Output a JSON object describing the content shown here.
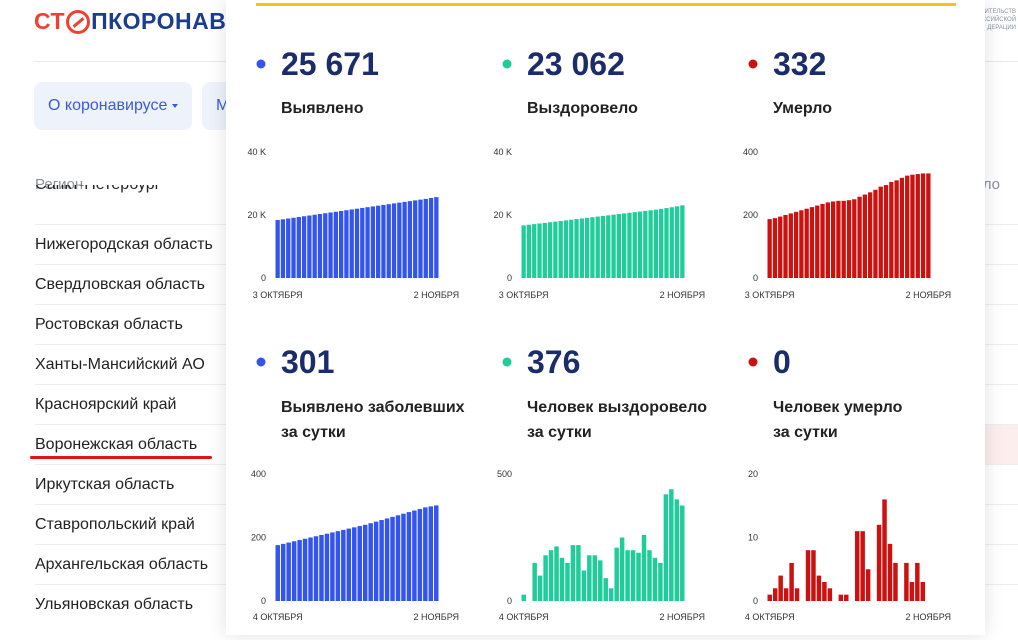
{
  "header": {
    "logo_left": "СТ",
    "logo_right": "ПКОРОНАВИ",
    "gov_lines": [
      "ИТЕЛЬСТВ",
      "ССИЙСКОЙ",
      "ДЕРАЦИИ"
    ]
  },
  "nav": [
    "О коронавирусе",
    "М"
  ],
  "table": {
    "header": "Регион",
    "header_right": "ло",
    "rows": [
      "Санкт-Петербург",
      "Нижегородская область",
      "Свердловская область",
      "Ростовская область",
      "Ханты-Мансийский АО",
      "Красноярский край",
      "Воронежская область",
      "Иркутская область",
      "Ставропольский край",
      "Архангельская область",
      "Ульяновская область"
    ]
  },
  "chart_data": [
    {
      "type": "bar",
      "headline": "25 671",
      "caption": [
        "Выявлено"
      ],
      "color": "#3355ee",
      "categories": [
        "3 ОКТЯБРЯ",
        null,
        null,
        null,
        null,
        null,
        null,
        null,
        null,
        null,
        null,
        null,
        null,
        null,
        null,
        null,
        null,
        null,
        null,
        null,
        null,
        null,
        null,
        null,
        null,
        null,
        null,
        null,
        null,
        null,
        "2 НОЯБРЯ"
      ],
      "values": [
        18400,
        18640,
        18880,
        19120,
        19360,
        19600,
        19840,
        20080,
        20320,
        20560,
        20800,
        21040,
        21280,
        21520,
        21760,
        22000,
        22240,
        22480,
        22720,
        22960,
        23200,
        23440,
        23680,
        23920,
        24160,
        24400,
        24640,
        24880,
        25120,
        25400,
        25671
      ],
      "ylim": [
        0,
        40000
      ],
      "yticks": [
        0,
        {
          "value": 20000,
          "label": "20 K"
        },
        {
          "value": 40000,
          "label": "40 K"
        }
      ]
    },
    {
      "type": "bar",
      "headline": "23 062",
      "caption": [
        "Выздоровело"
      ],
      "color": "#1fcc9a",
      "categories": [
        "3 ОКТЯБРЯ",
        null,
        null,
        null,
        null,
        null,
        null,
        null,
        null,
        null,
        null,
        null,
        null,
        null,
        null,
        null,
        null,
        null,
        null,
        null,
        null,
        null,
        null,
        null,
        null,
        null,
        null,
        null,
        null,
        null,
        "2 НОЯБРЯ"
      ],
      "values": [
        16700,
        16900,
        17100,
        17300,
        17500,
        17700,
        17900,
        18100,
        18300,
        18500,
        18700,
        18900,
        19100,
        19300,
        19500,
        19700,
        19900,
        20100,
        20300,
        20500,
        20700,
        20900,
        21100,
        21300,
        21500,
        21700,
        21950,
        22200,
        22450,
        22750,
        23062
      ],
      "ylim": [
        0,
        40000
      ],
      "yticks": [
        0,
        {
          "value": 20000,
          "label": "20 K"
        },
        {
          "value": 40000,
          "label": "40 K"
        }
      ]
    },
    {
      "type": "bar",
      "headline": "332",
      "caption": [
        "Умерло"
      ],
      "color": "#cc1111",
      "categories": [
        "3 ОКТЯБРЯ",
        null,
        null,
        null,
        null,
        null,
        null,
        null,
        null,
        null,
        null,
        null,
        null,
        null,
        null,
        null,
        null,
        null,
        null,
        null,
        null,
        null,
        null,
        null,
        null,
        null,
        null,
        null,
        null,
        null,
        "2 НОЯБРЯ"
      ],
      "values": [
        187,
        190,
        195,
        200,
        205,
        210,
        215,
        220,
        225,
        230,
        235,
        240,
        243,
        245,
        245,
        247,
        250,
        258,
        265,
        272,
        280,
        290,
        295,
        305,
        310,
        318,
        325,
        328,
        330,
        332,
        332
      ],
      "ylim": [
        0,
        400
      ],
      "yticks": [
        0,
        200,
        400
      ]
    },
    {
      "type": "bar",
      "headline": "301",
      "caption": [
        "Выявлено заболевших",
        "за сутки"
      ],
      "color": "#3355ee",
      "categories": [
        "4 ОКТЯБРЯ",
        null,
        null,
        null,
        null,
        null,
        null,
        null,
        null,
        null,
        null,
        null,
        null,
        null,
        null,
        null,
        null,
        null,
        null,
        null,
        null,
        null,
        null,
        null,
        null,
        null,
        null,
        null,
        null,
        "2 НОЯБРЯ"
      ],
      "values": [
        176,
        180,
        184,
        188,
        192,
        196,
        200,
        204,
        208,
        212,
        216,
        220,
        224,
        228,
        232,
        236,
        240,
        245,
        250,
        255,
        260,
        265,
        270,
        275,
        280,
        285,
        290,
        295,
        298,
        301
      ],
      "ylim": [
        0,
        400
      ],
      "yticks": [
        0,
        200,
        400
      ]
    },
    {
      "type": "bar",
      "headline": "376",
      "caption": [
        "Человек выздоровело",
        "за сутки"
      ],
      "color": "#1fcc9a",
      "categories": [
        "4 ОКТЯБРЯ",
        null,
        null,
        null,
        null,
        null,
        null,
        null,
        null,
        null,
        null,
        null,
        null,
        null,
        null,
        null,
        null,
        null,
        null,
        null,
        null,
        null,
        null,
        null,
        null,
        null,
        null,
        null,
        null,
        "2 НОЯБРЯ"
      ],
      "values": [
        25,
        0,
        150,
        100,
        180,
        200,
        215,
        170,
        150,
        220,
        220,
        120,
        180,
        180,
        160,
        90,
        50,
        210,
        250,
        200,
        200,
        190,
        260,
        200,
        170,
        150,
        420,
        440,
        400,
        376
      ],
      "ylim": [
        0,
        500
      ],
      "yticks": [
        0,
        500
      ]
    },
    {
      "type": "bar",
      "headline": "0",
      "caption": [
        "Человек умерло",
        "за сутки"
      ],
      "color": "#cc1111",
      "categories": [
        "4 ОКТЯБРЯ",
        null,
        null,
        null,
        null,
        null,
        null,
        null,
        null,
        null,
        null,
        null,
        null,
        null,
        null,
        null,
        null,
        null,
        null,
        null,
        null,
        null,
        null,
        null,
        null,
        null,
        null,
        null,
        null,
        "2 НОЯБРЯ"
      ],
      "values": [
        1,
        2,
        4,
        2,
        6,
        2,
        0,
        8,
        8,
        4,
        3,
        2,
        0,
        1,
        1,
        0,
        11,
        11,
        5,
        0,
        12,
        16,
        9,
        6,
        0,
        6,
        3,
        6,
        3,
        0
      ],
      "ylim": [
        0,
        20
      ],
      "yticks": [
        0,
        10,
        20
      ]
    }
  ]
}
